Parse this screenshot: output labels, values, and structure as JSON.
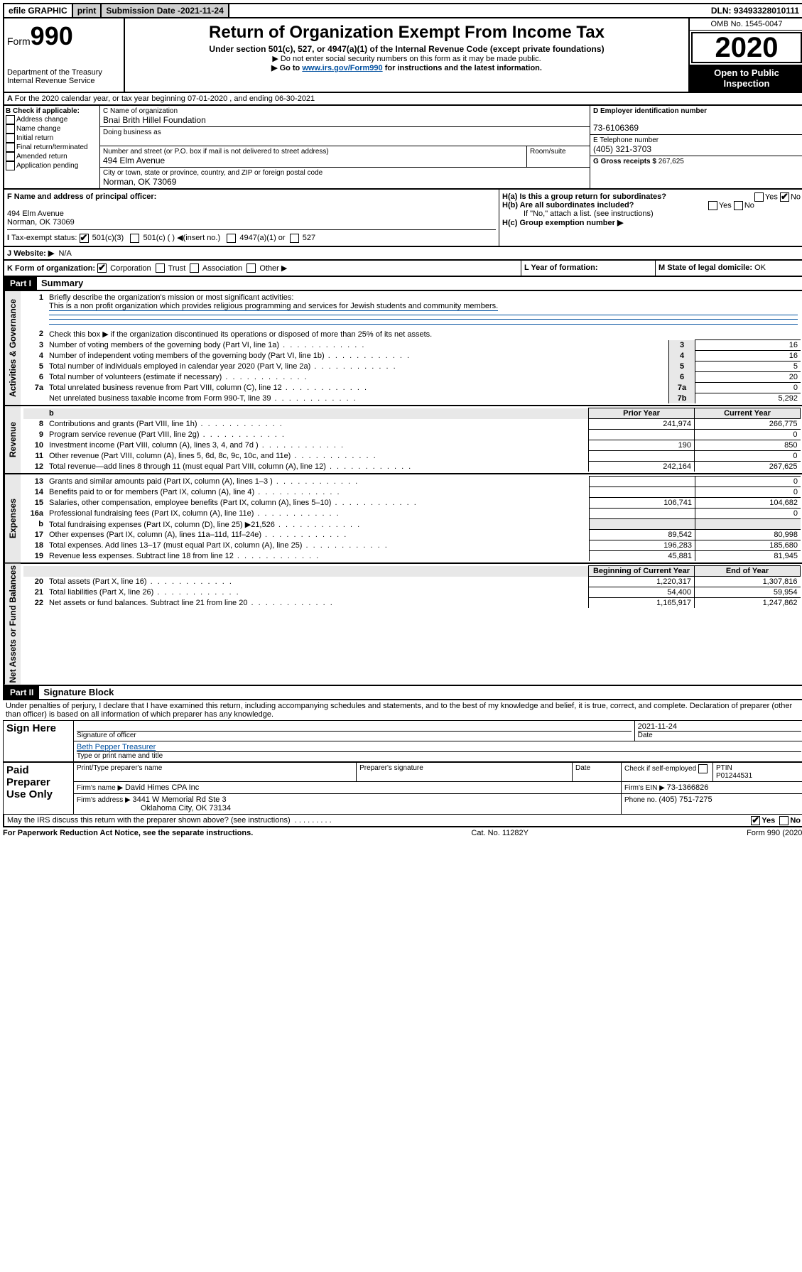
{
  "top": {
    "efile": "efile GRAPHIC",
    "print": "print",
    "subdate_label": "Submission Date - ",
    "subdate": "2021-11-24",
    "dln_label": "DLN: ",
    "dln": "93493328010111"
  },
  "header": {
    "form_label": "Form",
    "form_num": "990",
    "dept1": "Department of the Treasury",
    "dept2": "Internal Revenue Service",
    "title": "Return of Organization Exempt From Income Tax",
    "sub1": "Under section 501(c), 527, or 4947(a)(1) of the Internal Revenue Code (except private foundations)",
    "sub2": "▶ Do not enter social security numbers on this form as it may be made public.",
    "sub3a": "▶ Go to ",
    "sub3_link": "www.irs.gov/Form990",
    "sub3b": " for instructions and the latest information.",
    "omb": "OMB No. 1545-0047",
    "year": "2020",
    "open": "Open to Public Inspection"
  },
  "lineA": "For the 2020 calendar year, or tax year beginning 07-01-2020    , and ending 06-30-2021",
  "boxB": {
    "title": "B Check if applicable:",
    "items": [
      "Address change",
      "Name change",
      "Initial return",
      "Final return/terminated",
      "Amended return",
      "Application pending"
    ]
  },
  "boxC": {
    "label_name": "C Name of organization",
    "name": "Bnai Brith Hillel Foundation",
    "dba_label": "Doing business as",
    "addr_label": "Number and street (or P.O. box if mail is not delivered to street address)",
    "room_label": "Room/suite",
    "addr": "494 Elm Avenue",
    "city_label": "City or town, state or province, country, and ZIP or foreign postal code",
    "city": "Norman, OK  73069"
  },
  "boxD": {
    "label": "D Employer identification number",
    "val": "73-6106369"
  },
  "boxE": {
    "label": "E Telephone number",
    "val": "(405) 321-3703"
  },
  "boxG": {
    "label": "G Gross receipts $ ",
    "val": "267,625"
  },
  "boxF": {
    "label": "F  Name and address of principal officer:",
    "line1": "494 Elm Avenue",
    "line2": "Norman, OK  73069"
  },
  "boxH": {
    "a": "H(a)  Is this a group return for subordinates?",
    "b": "H(b)  Are all subordinates included?",
    "b_note": "If \"No,\" attach a list. (see instructions)",
    "c": "H(c)  Group exemption number ▶",
    "yes": "Yes",
    "no": "No"
  },
  "boxI": {
    "label": "Tax-exempt status:",
    "o1": "501(c)(3)",
    "o2": "501(c) (  ) ◀(insert no.)",
    "o3": "4947(a)(1) or",
    "o4": "527"
  },
  "boxJ": {
    "label": "Website: ▶",
    "val": "N/A"
  },
  "boxK": {
    "label": "K Form of organization:",
    "o1": "Corporation",
    "o2": "Trust",
    "o3": "Association",
    "o4": "Other ▶"
  },
  "boxL": {
    "label": "L Year of formation:",
    "val": ""
  },
  "boxM": {
    "label": "M State of legal domicile: ",
    "val": "OK"
  },
  "part1": {
    "hdr": "Part I",
    "title": "Summary",
    "q1": "Briefly describe the organization's mission or most significant activities:",
    "q1_ans": "This is a non profit organization which provides religious programming and services for Jewish students and community members.",
    "q2": "Check this box ▶      if the organization discontinued its operations or disposed of more than 25% of its net assets.",
    "rows_gov": [
      {
        "n": "3",
        "t": "Number of voting members of the governing body (Part VI, line 1a)",
        "c": "3",
        "v": "16"
      },
      {
        "n": "4",
        "t": "Number of independent voting members of the governing body (Part VI, line 1b)",
        "c": "4",
        "v": "16"
      },
      {
        "n": "5",
        "t": "Total number of individuals employed in calendar year 2020 (Part V, line 2a)",
        "c": "5",
        "v": "5"
      },
      {
        "n": "6",
        "t": "Total number of volunteers (estimate if necessary)",
        "c": "6",
        "v": "20"
      },
      {
        "n": "7a",
        "t": "Total unrelated business revenue from Part VIII, column (C), line 12",
        "c": "7a",
        "v": "0"
      },
      {
        "n": "",
        "t": "Net unrelated business taxable income from Form 990-T, line 39",
        "c": "7b",
        "v": "5,292"
      }
    ],
    "col_prior": "Prior Year",
    "col_current": "Current Year",
    "rows_rev": [
      {
        "n": "8",
        "t": "Contributions and grants (Part VIII, line 1h)",
        "p": "241,974",
        "c": "266,775"
      },
      {
        "n": "9",
        "t": "Program service revenue (Part VIII, line 2g)",
        "p": "",
        "c": "0"
      },
      {
        "n": "10",
        "t": "Investment income (Part VIII, column (A), lines 3, 4, and 7d )",
        "p": "190",
        "c": "850"
      },
      {
        "n": "11",
        "t": "Other revenue (Part VIII, column (A), lines 5, 6d, 8c, 9c, 10c, and 11e)",
        "p": "",
        "c": "0"
      },
      {
        "n": "12",
        "t": "Total revenue—add lines 8 through 11 (must equal Part VIII, column (A), line 12)",
        "p": "242,164",
        "c": "267,625"
      }
    ],
    "rows_exp": [
      {
        "n": "13",
        "t": "Grants and similar amounts paid (Part IX, column (A), lines 1–3 )",
        "p": "",
        "c": "0"
      },
      {
        "n": "14",
        "t": "Benefits paid to or for members (Part IX, column (A), line 4)",
        "p": "",
        "c": "0"
      },
      {
        "n": "15",
        "t": "Salaries, other compensation, employee benefits (Part IX, column (A), lines 5–10)",
        "p": "106,741",
        "c": "104,682"
      },
      {
        "n": "16a",
        "t": "Professional fundraising fees (Part IX, column (A), line 11e)",
        "p": "",
        "c": "0"
      },
      {
        "n": "b",
        "t": "Total fundraising expenses (Part IX, column (D), line 25) ▶21,526",
        "p": "gray",
        "c": "gray"
      },
      {
        "n": "17",
        "t": "Other expenses (Part IX, column (A), lines 11a–11d, 11f–24e)",
        "p": "89,542",
        "c": "80,998"
      },
      {
        "n": "18",
        "t": "Total expenses. Add lines 13–17 (must equal Part IX, column (A), line 25)",
        "p": "196,283",
        "c": "185,680"
      },
      {
        "n": "19",
        "t": "Revenue less expenses. Subtract line 18 from line 12",
        "p": "45,881",
        "c": "81,945"
      }
    ],
    "col_begin": "Beginning of Current Year",
    "col_end": "End of Year",
    "rows_net": [
      {
        "n": "20",
        "t": "Total assets (Part X, line 16)",
        "p": "1,220,317",
        "c": "1,307,816"
      },
      {
        "n": "21",
        "t": "Total liabilities (Part X, line 26)",
        "p": "54,400",
        "c": "59,954"
      },
      {
        "n": "22",
        "t": "Net assets or fund balances. Subtract line 21 from line 20",
        "p": "1,165,917",
        "c": "1,247,862"
      }
    ],
    "side_gov": "Activities & Governance",
    "side_rev": "Revenue",
    "side_exp": "Expenses",
    "side_net": "Net Assets or Fund Balances"
  },
  "part2": {
    "hdr": "Part II",
    "title": "Signature Block",
    "decl": "Under penalties of perjury, I declare that I have examined this return, including accompanying schedules and statements, and to the best of my knowledge and belief, it is true, correct, and complete. Declaration of preparer (other than officer) is based on all information of which preparer has any knowledge.",
    "sign_here": "Sign Here",
    "sig_officer": "Signature of officer",
    "sig_date": "2021-11-24",
    "date_label": "Date",
    "officer_name": "Beth Pepper  Treasurer",
    "type_name": "Type or print name and title",
    "paid": "Paid Preparer Use Only",
    "prep_name_label": "Print/Type preparer's name",
    "prep_sig_label": "Preparer's signature",
    "prep_date_label": "Date",
    "check_self": "Check         if self-employed",
    "ptin_label": "PTIN",
    "ptin": "P01244531",
    "firm_name_label": "Firm's name     ▶ ",
    "firm_name": "David Himes CPA Inc",
    "firm_ein_label": "Firm's EIN ▶ ",
    "firm_ein": "73-1366826",
    "firm_addr_label": "Firm's address ▶ ",
    "firm_addr1": "3441 W Memorial Rd Ste 3",
    "firm_addr2": "Oklahoma City, OK  73134",
    "phone_label": "Phone no. ",
    "phone": "(405) 751-7275",
    "discuss": "May the IRS discuss this return with the preparer shown above? (see instructions)",
    "yes": "Yes",
    "no": "No"
  },
  "footer": {
    "left": "For Paperwork Reduction Act Notice, see the separate instructions.",
    "mid": "Cat. No. 11282Y",
    "right": "Form 990 (2020)"
  }
}
